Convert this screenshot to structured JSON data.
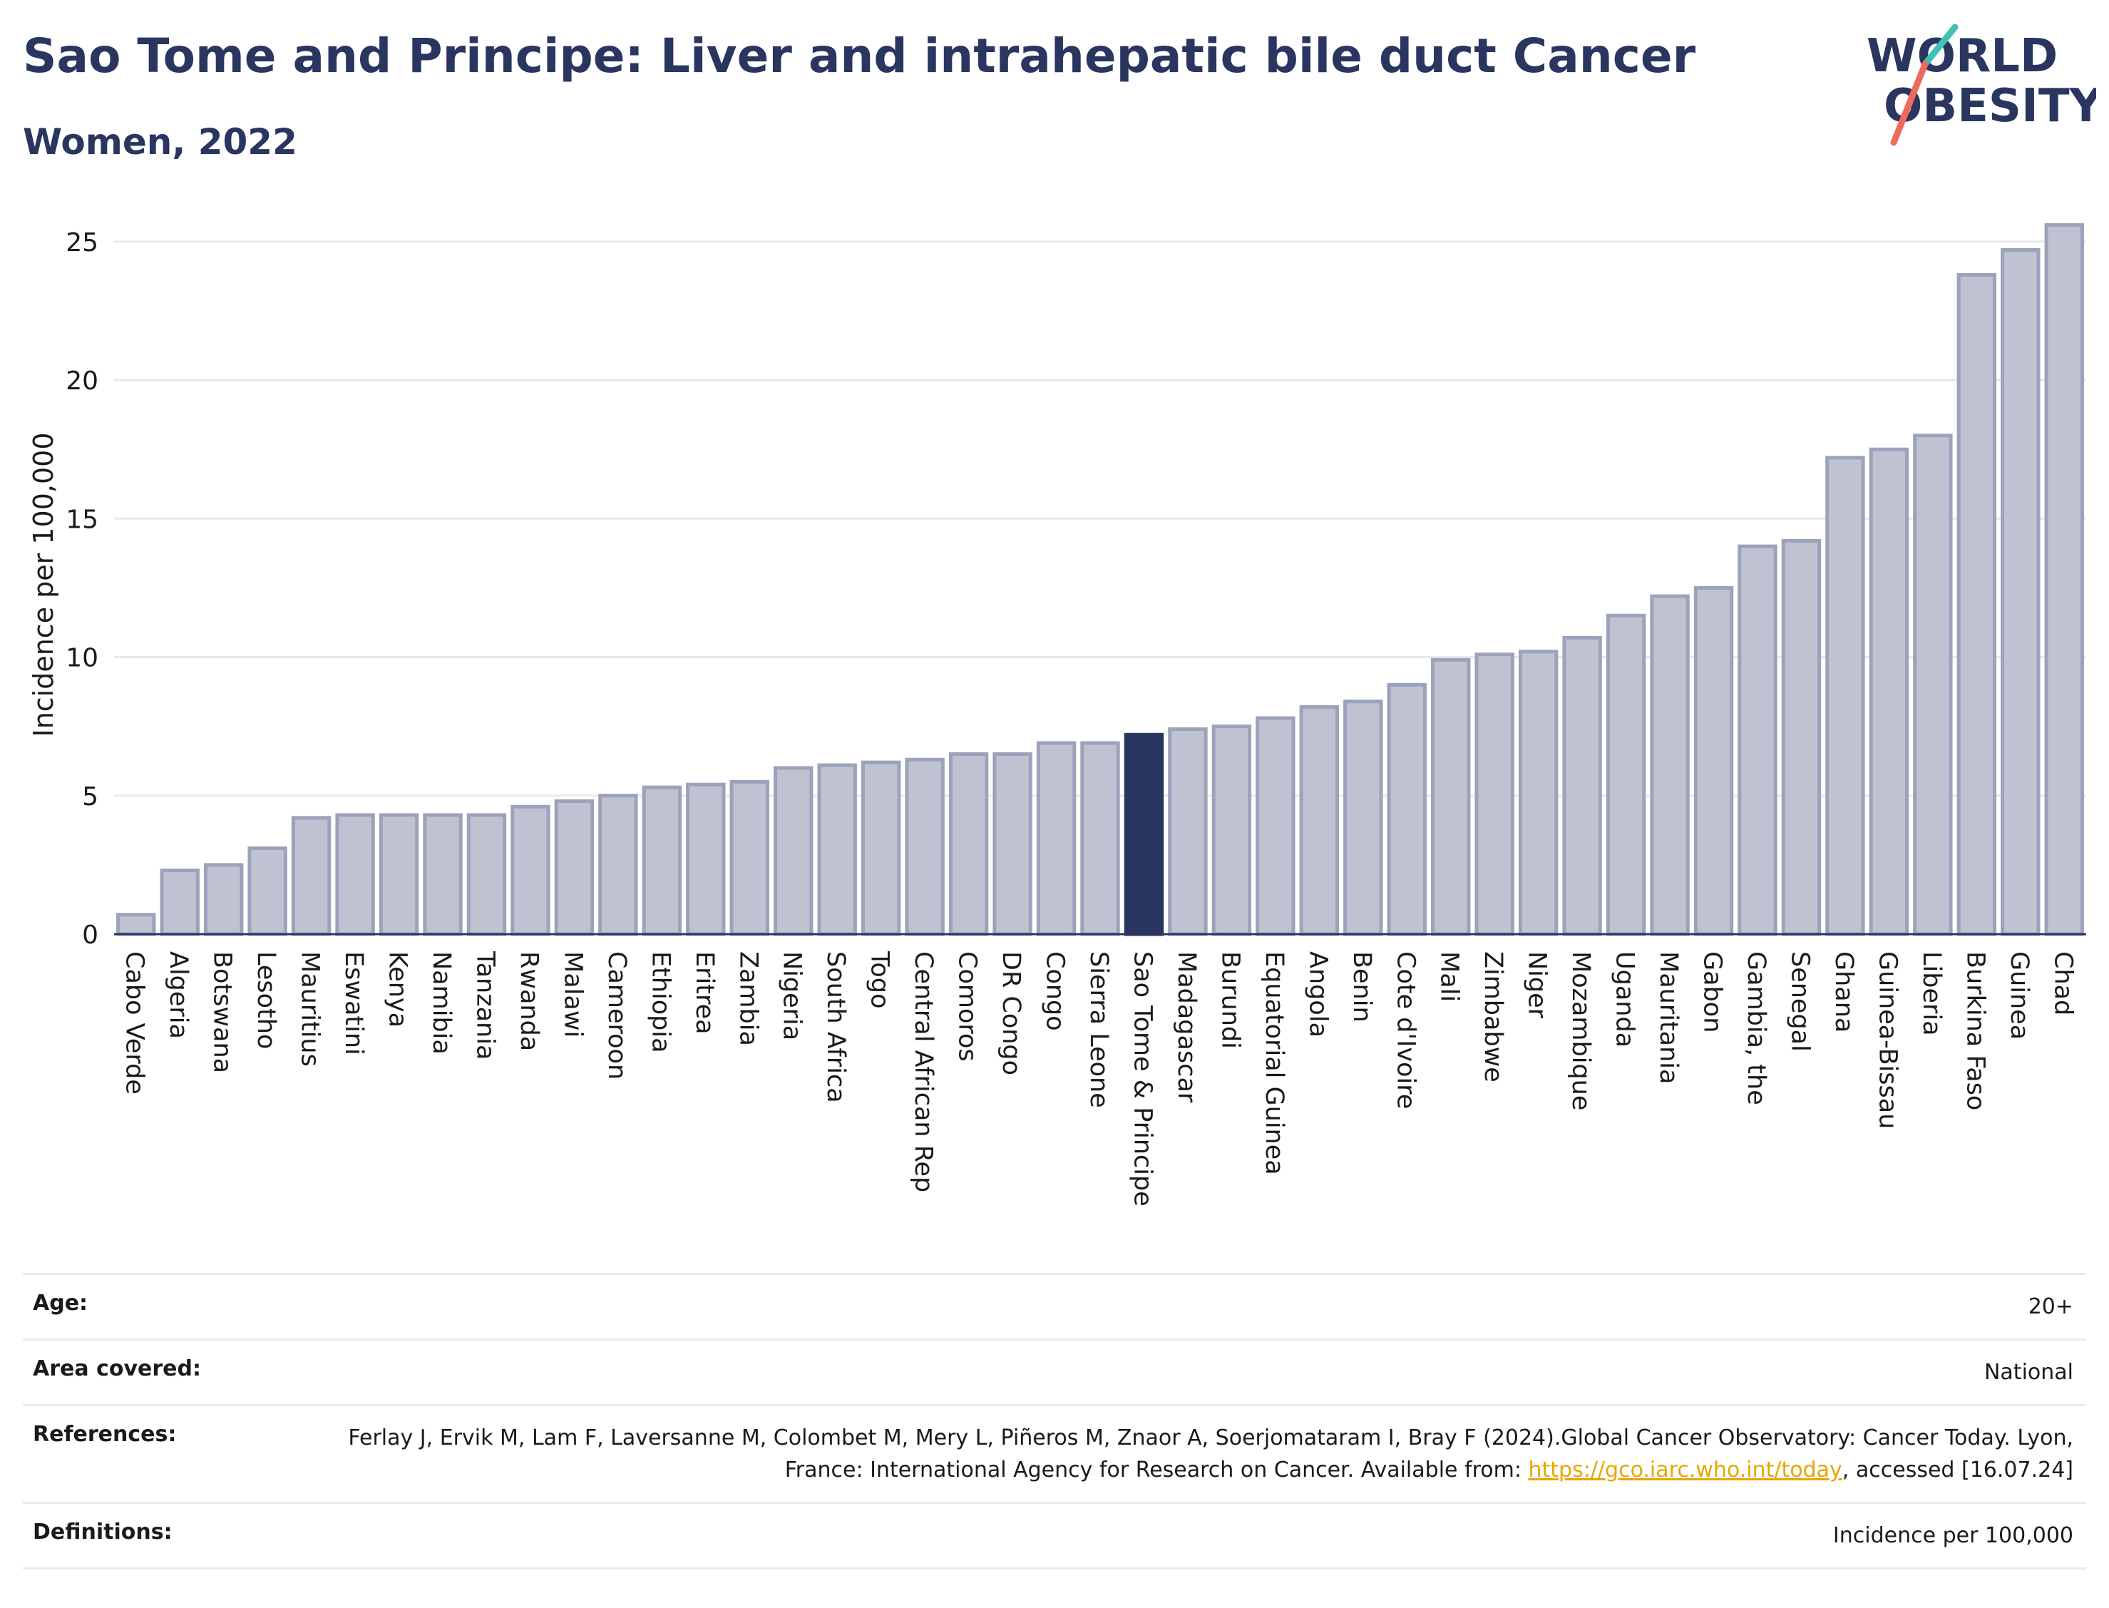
{
  "header": {
    "title": "Sao Tome and Principe: Liver and intrahepatic bile duct Cancer",
    "subtitle": "Women, 2022"
  },
  "logo": {
    "line1": "WORLD",
    "line2": "OBESITY",
    "accent_teal": "#3fc1b4",
    "accent_coral": "#ec6b5c"
  },
  "colors": {
    "bar_fill": "#bfc3d1",
    "bar_stroke": "#9da2bb",
    "highlight": "#2a3560",
    "grid": "#e6e8ee",
    "text": "#2a3560"
  },
  "chart_data": {
    "type": "bar",
    "title": "",
    "xlabel": "",
    "ylabel": "Incidence per 100,000",
    "ylim": [
      0,
      26
    ],
    "yticks": [
      0,
      5,
      10,
      15,
      20,
      25
    ],
    "grid": true,
    "highlight_category": "Sao Tome & Principe",
    "categories": [
      "Cabo Verde",
      "Algeria",
      "Botswana",
      "Lesotho",
      "Mauritius",
      "Eswatini",
      "Kenya",
      "Namibia",
      "Tanzania",
      "Rwanda",
      "Malawi",
      "Cameroon",
      "Ethiopia",
      "Eritrea",
      "Zambia",
      "Nigeria",
      "South Africa",
      "Togo",
      "Central African Rep",
      "Comoros",
      "DR Congo",
      "Congo",
      "Sierra Leone",
      "Sao Tome & Principe",
      "Madagascar",
      "Burundi",
      "Equatorial Guinea",
      "Angola",
      "Benin",
      "Cote d'Ivoire",
      "Mali",
      "Zimbabwe",
      "Niger",
      "Mozambique",
      "Uganda",
      "Mauritania",
      "Gabon",
      "Gambia, the",
      "Senegal",
      "Ghana",
      "Guinea-Bissau",
      "Liberia",
      "Burkina Faso",
      "Guinea",
      "Chad"
    ],
    "values": [
      0.7,
      2.3,
      2.5,
      3.1,
      4.2,
      4.3,
      4.3,
      4.3,
      4.3,
      4.6,
      4.8,
      5.0,
      5.3,
      5.4,
      5.5,
      6.0,
      6.1,
      6.2,
      6.3,
      6.5,
      6.5,
      6.9,
      6.9,
      7.2,
      7.4,
      7.5,
      7.8,
      8.2,
      8.4,
      9.0,
      9.9,
      10.1,
      10.2,
      10.7,
      11.5,
      12.2,
      12.5,
      14.0,
      14.2,
      17.2,
      17.5,
      18.0,
      23.8,
      24.7,
      25.6
    ]
  },
  "meta": {
    "age_label": "Age:",
    "age_value": "20+",
    "area_label": "Area covered:",
    "area_value": "National",
    "references_label": "References:",
    "references_text": "Ferlay J, Ervik M, Lam F, Laversanne M, Colombet M, Mery L, Piñeros M, Znaor A, Soerjomataram I, Bray F (2024).Global Cancer Observatory: Cancer Today. Lyon, France: International Agency for Research on Cancer. Available from:",
    "references_link": "https://gco.iarc.who.int/today",
    "references_tail": ", accessed [16.07.24]",
    "definitions_label": "Definitions:",
    "definitions_value": "Incidence per 100,000"
  }
}
